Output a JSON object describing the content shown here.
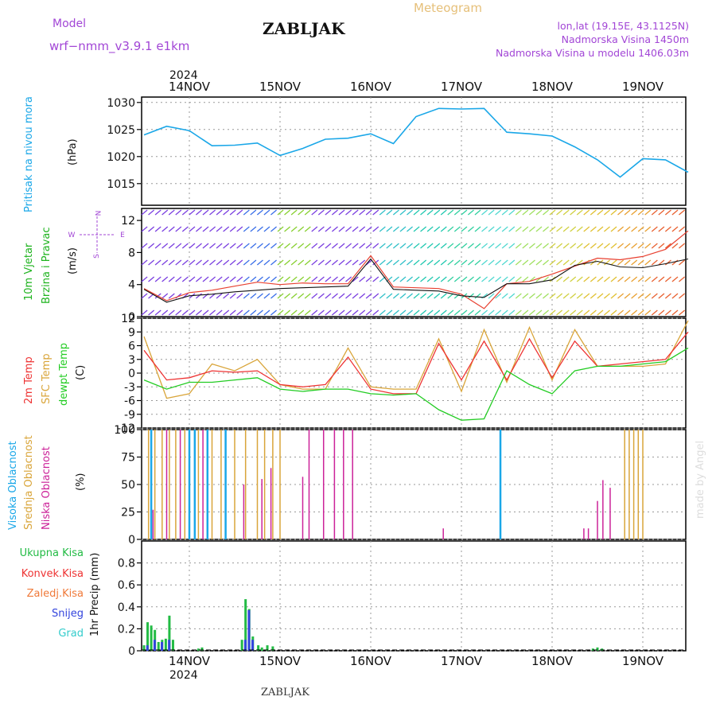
{
  "header": {
    "model_label": "Model",
    "model_name": "wrf−nmm_v3.9.1  e1km",
    "station": "ZABLJAK",
    "product": "Meteogram",
    "lonlat": "lon,lat (19.15E, 43.1125N)",
    "altitude": "Nadmorska Visina 1450m",
    "model_altitude": "Nadmorska Visina u modelu 1406.03m",
    "year": "2024",
    "footer_station": "ZABLJAK",
    "watermark": "made by Angel"
  },
  "colors": {
    "pressure": "#1aa7e8",
    "wind_title": "#1db31d",
    "t2m": "#ee3333",
    "tsfc": "#d9a53a",
    "dewpt": "#22cc22",
    "high_cloud": "#1aa7e8",
    "mid_cloud": "#d9a53a",
    "low_cloud": "#cc2299",
    "model_text": "#a246d6",
    "meteogram_text": "#e6c07a",
    "precip_total": "#22bb44",
    "precip_conv": "#ee3333",
    "precip_frozen": "#f07a3a",
    "snow": "#3344dd",
    "graupel": "#33cccc"
  },
  "chart_data": [
    {
      "type": "line",
      "id": "pressure",
      "ylabel_title": "Pritisak na nivou mora",
      "ylabel_unit": "(hPa)",
      "x_ticks": [
        "14NOV",
        "15NOV",
        "16NOV",
        "17NOV",
        "18NOV",
        "19NOV"
      ],
      "ylim": [
        1011,
        1031
      ],
      "y_ticks": [
        1015,
        1020,
        1025,
        1030
      ],
      "grid": true,
      "x": [
        0.0,
        0.25,
        0.5,
        0.75,
        1.0,
        1.25,
        1.5,
        1.75,
        2.0,
        2.25,
        2.5,
        2.75,
        3.0,
        3.25,
        3.5,
        3.75,
        4.0,
        4.25,
        4.5,
        4.75,
        5.0,
        5.25,
        5.5,
        5.75,
        6.0
      ],
      "series": [
        {
          "values": [
            1024,
            1025.6,
            1024.8,
            1022,
            1022.1,
            1022.5,
            1020.2,
            1021.5,
            1023.2,
            1023.4,
            1024.2,
            1022.4,
            1027.4,
            1028.9,
            1028.8,
            1028.9,
            1024.5,
            1024.2,
            1023.8,
            1021.8,
            1019.4,
            1016.2,
            1019.6,
            1019.4,
            1017.1
          ]
        }
      ]
    },
    {
      "type": "line",
      "id": "wind",
      "ylabel_title": "10m Vjetar",
      "ylabel_subtitle": "Brzina i Pravac",
      "ylabel_unit": "(m/s)",
      "compass": [
        "N",
        "W",
        "E",
        "S"
      ],
      "ylim": [
        0,
        13.5
      ],
      "y_ticks": [
        0,
        4,
        8,
        12
      ],
      "grid": true,
      "x": [
        0.0,
        0.25,
        0.5,
        0.75,
        1.0,
        1.25,
        1.5,
        1.75,
        2.0,
        2.25,
        2.5,
        2.75,
        3.0,
        3.25,
        3.5,
        3.75,
        4.0,
        4.25,
        4.5,
        4.75,
        5.0,
        5.25,
        5.5,
        5.75,
        6.0
      ],
      "series": [
        {
          "name": "speed",
          "values": [
            3.4,
            1.8,
            2.6,
            2.8,
            3.1,
            3.3,
            3.5,
            3.6,
            3.7,
            3.8,
            7.2,
            3.4,
            3.3,
            3.2,
            2.6,
            2.4,
            4.1,
            4.1,
            4.6,
            6.4,
            6.9,
            6.2,
            6.1,
            6.6,
            7.2
          ]
        },
        {
          "name": "gust",
          "values": [
            3.5,
            2.0,
            3.0,
            3.3,
            3.8,
            4.3,
            4.0,
            4.2,
            4.1,
            4.1,
            7.6,
            3.7,
            3.6,
            3.5,
            2.8,
            1.0,
            4.1,
            4.4,
            5.3,
            6.3,
            7.3,
            7.1,
            7.5,
            8.4,
            10.7
          ]
        }
      ]
    },
    {
      "type": "line",
      "id": "temperature",
      "ylabel_t2m": "2m Temp",
      "ylabel_tsfc": "SFC Temp",
      "ylabel_dew": "dewpt Temp",
      "ylabel_unit": "(C)",
      "ylim": [
        -12,
        12
      ],
      "y_ticks": [
        -12,
        -9,
        -6,
        -3,
        0,
        3,
        6,
        9,
        12
      ],
      "grid": true,
      "x": [
        0.0,
        0.25,
        0.5,
        0.75,
        1.0,
        1.25,
        1.5,
        1.75,
        2.0,
        2.25,
        2.5,
        2.75,
        3.0,
        3.25,
        3.5,
        3.75,
        4.0,
        4.25,
        4.5,
        4.75,
        5.0,
        5.25,
        5.5,
        5.75,
        6.0
      ],
      "series": [
        {
          "name": "2m Temp",
          "values": [
            5.0,
            -1.5,
            -1.0,
            0.5,
            0.2,
            0.5,
            -2.5,
            -3.0,
            -2.5,
            3.5,
            -3.5,
            -4.5,
            -4.5,
            6.5,
            -1.5,
            7.0,
            -1.5,
            7.5,
            -1.0,
            7.0,
            1.5,
            2.0,
            2.5,
            3.0,
            9.0
          ]
        },
        {
          "name": "SFC Temp",
          "values": [
            8.0,
            -5.5,
            -4.5,
            2.0,
            0.5,
            3.0,
            -2.5,
            -3.5,
            -3.5,
            5.5,
            -3.0,
            -3.5,
            -3.5,
            7.5,
            -4.0,
            9.5,
            -2.0,
            10.0,
            -1.5,
            9.5,
            1.5,
            1.5,
            1.5,
            2.0,
            11.5
          ]
        },
        {
          "name": "dewpt Temp",
          "values": [
            -1.5,
            -3.5,
            -2.0,
            -2.0,
            -1.5,
            -1.0,
            -3.5,
            -4.0,
            -3.5,
            -3.5,
            -4.5,
            -4.8,
            -4.5,
            -8.0,
            -10.3,
            -10.0,
            0.5,
            -2.5,
            -4.5,
            0.5,
            1.5,
            1.5,
            2.0,
            2.5,
            5.5
          ]
        }
      ]
    },
    {
      "type": "bar",
      "id": "clouds",
      "ylabel_high": "Visoka Oblacnost",
      "ylabel_mid": "Srednja Oblacnost",
      "ylabel_low": "Niska Oblacnost",
      "ylabel_unit": "(%)",
      "ylim": [
        0,
        100
      ],
      "y_ticks": [
        0,
        25,
        50,
        75,
        100
      ],
      "grid": true,
      "series": [
        {
          "name": "Visoka Oblacnost",
          "x": [
            0.08,
            0.5,
            0.56,
            0.7,
            0.9,
            3.93
          ],
          "values": [
            100,
            100,
            100,
            100,
            100,
            100
          ]
        },
        {
          "name": "Srednja Oblacnost",
          "x": [
            0.05,
            0.12,
            0.2,
            0.28,
            0.35,
            0.45,
            0.6,
            0.75,
            0.85,
            1.0,
            1.12,
            1.25,
            1.33,
            1.42,
            1.5,
            5.3,
            5.35,
            5.4,
            5.45,
            5.5
          ],
          "values": [
            100,
            100,
            100,
            100,
            100,
            100,
            100,
            100,
            100,
            100,
            100,
            100,
            100,
            100,
            100,
            100,
            100,
            100,
            100,
            100
          ]
        },
        {
          "name": "Niska Oblacnost",
          "x": [
            0.1,
            0.25,
            0.4,
            0.65,
            1.1,
            1.3,
            1.4,
            1.75,
            1.82,
            1.98,
            2.1,
            2.2,
            2.3,
            3.3,
            4.85,
            4.9,
            5.0,
            5.06,
            5.14
          ],
          "values": [
            27,
            100,
            100,
            100,
            50,
            55,
            65,
            57,
            100,
            100,
            100,
            100,
            100,
            10,
            10,
            10,
            35,
            54,
            47
          ]
        }
      ]
    },
    {
      "type": "bar",
      "id": "precip",
      "legend": [
        "Ukupna Kisa",
        "Konvek.Kisa",
        "Zaledj.Kisa",
        "Snijeg",
        "Grad"
      ],
      "ylabel_unit": "1hr Precip (mm)",
      "ylim": [
        0,
        1.0
      ],
      "y_ticks": [
        0,
        0.2,
        0.4,
        0.6,
        0.8
      ],
      "grid": true,
      "x_ticks_bottom": [
        "14NOV",
        "15NOV",
        "16NOV",
        "17NOV",
        "18NOV",
        "19NOV"
      ],
      "series": [
        {
          "name": "Ukupna Kisa",
          "x": [
            0.0,
            0.04,
            0.08,
            0.12,
            0.16,
            0.2,
            0.24,
            0.28,
            0.32,
            0.6,
            0.64,
            1.08,
            1.12,
            1.16,
            1.2,
            1.26,
            1.3,
            1.36,
            1.42,
            4.95,
            5.0,
            5.05
          ],
          "values": [
            0.05,
            0.26,
            0.23,
            0.19,
            0.08,
            0.1,
            0.11,
            0.32,
            0.1,
            0.02,
            0.03,
            0.1,
            0.47,
            0.38,
            0.13,
            0.05,
            0.03,
            0.05,
            0.04,
            0.02,
            0.03,
            0.02
          ]
        },
        {
          "name": "Snijeg",
          "x": [
            0.02,
            0.1,
            0.18,
            0.26,
            1.1,
            1.14,
            1.18
          ],
          "values": [
            0.05,
            0.1,
            0.08,
            0.1,
            0.1,
            0.37,
            0.1
          ]
        }
      ]
    }
  ]
}
